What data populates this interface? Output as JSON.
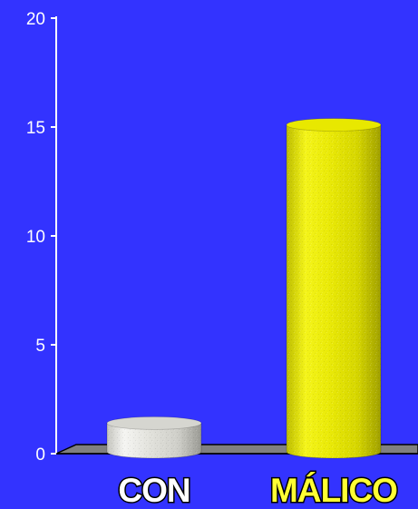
{
  "chart_data": {
    "type": "bar",
    "categories": [
      "CON",
      "MÁLICO"
    ],
    "values": [
      1.4,
      15.1
    ],
    "title": "",
    "xlabel": "",
    "ylabel": "",
    "ylim": [
      0,
      20
    ],
    "yticks": [
      "0",
      "5",
      "10",
      "15",
      "20"
    ],
    "grid": false,
    "bar_style": "3d-cylinder",
    "colors": {
      "background": "#3333ff",
      "bars": [
        "#d6d6d0",
        "#e8e800"
      ],
      "category_labels": [
        "#ffffff",
        "#ffff33"
      ],
      "axis": "#ffffff",
      "floor": "#808080"
    }
  }
}
